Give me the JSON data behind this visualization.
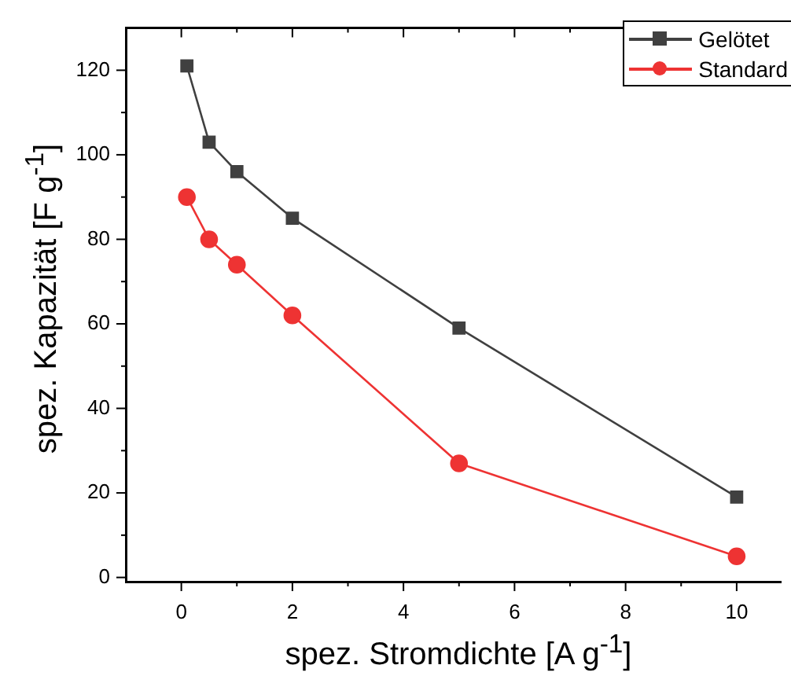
{
  "chart_data": {
    "type": "line",
    "xlabel": "spez. Stromdichte [A g$^{-1}$]",
    "ylabel": "spez. Kapazität [F g$^{-1}$]",
    "x": [
      0.1,
      0.5,
      1,
      2,
      5,
      10
    ],
    "series": [
      {
        "name": "Gelötet",
        "color": "#404040",
        "marker": "square",
        "values": [
          121,
          103,
          96,
          85,
          59,
          19
        ]
      },
      {
        "name": "Standard",
        "color": "#ee3333",
        "marker": "circle",
        "values": [
          90,
          80,
          74,
          62,
          27,
          5
        ]
      }
    ],
    "xlim": [
      -1,
      10.8
    ],
    "ylim": [
      -1,
      130
    ],
    "xticks": [
      0,
      {
        "value": 1,
        "label": null
      },
      2,
      {
        "value": 3,
        "label": null
      },
      4,
      {
        "value": 5,
        "label": null
      },
      6,
      {
        "value": 7,
        "label": null
      },
      8,
      {
        "value": 9,
        "label": null
      },
      10
    ],
    "yticks": [
      0,
      {
        "value": 10,
        "label": null
      },
      20,
      {
        "value": 30,
        "label": null
      },
      40,
      {
        "value": 50,
        "label": null
      },
      60,
      {
        "value": 70,
        "label": null
      },
      80,
      {
        "value": 90,
        "label": null
      },
      100,
      {
        "value": 110,
        "label": null
      },
      120
    ],
    "legend": "top right",
    "grid": false,
    "line_style": "solid"
  }
}
